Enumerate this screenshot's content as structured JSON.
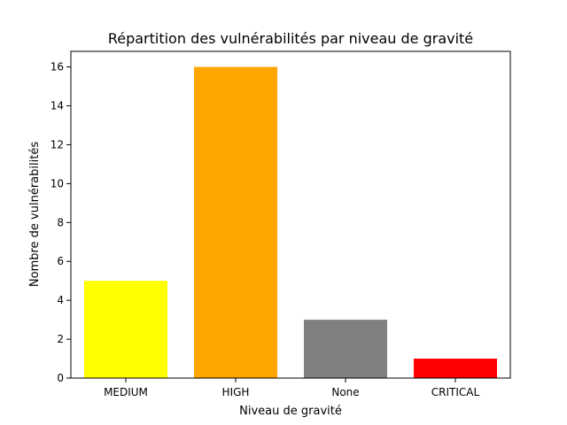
{
  "chart_data": {
    "type": "bar",
    "title": "Répartition des vulnérabilités par niveau de gravité",
    "xlabel": "Niveau de gravité",
    "ylabel": "Nombre de vulnérabilités",
    "categories": [
      "MEDIUM",
      "HIGH",
      "None",
      "CRITICAL"
    ],
    "values": [
      5,
      16,
      3,
      1
    ],
    "colors": [
      "#ffff00",
      "#ffa500",
      "#808080",
      "#ff0000"
    ],
    "ylim": [
      0,
      16.8
    ],
    "yticks": [
      0,
      2,
      4,
      6,
      8,
      10,
      12,
      14,
      16
    ],
    "grid": false,
    "legend": "none"
  }
}
